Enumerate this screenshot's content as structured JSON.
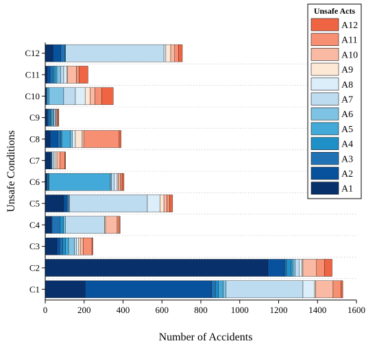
{
  "chart_data": {
    "type": "bar",
    "orientation": "horizontal",
    "stacked": true,
    "xlabel": "Number of Accidents",
    "ylabel": "Unsafe Conditions",
    "xlim": [
      0,
      1600
    ],
    "xticks": [
      0,
      200,
      400,
      600,
      800,
      1000,
      1200,
      1400,
      1600
    ],
    "grid": "horizontal dotted",
    "legend_title": "Unsafe Acts",
    "legend_placement": "top-right",
    "categories": [
      "C1",
      "C2",
      "C3",
      "C4",
      "C5",
      "C6",
      "C7",
      "C8",
      "C9",
      "C10",
      "C11",
      "C12"
    ],
    "series": [
      {
        "name": "A1",
        "color": "#08306b",
        "values": [
          205,
          1145,
          60,
          30,
          95,
          5,
          25,
          25,
          10,
          5,
          10,
          40
        ]
      },
      {
        "name": "A2",
        "color": "#08519c",
        "values": [
          650,
          85,
          15,
          5,
          15,
          5,
          5,
          40,
          5,
          0,
          15,
          40
        ]
      },
      {
        "name": "A3",
        "color": "#2171b5",
        "values": [
          20,
          10,
          15,
          40,
          10,
          5,
          5,
          15,
          10,
          5,
          15,
          20
        ]
      },
      {
        "name": "A4",
        "color": "#1f8fc8",
        "values": [
          15,
          25,
          15,
          20,
          0,
          5,
          0,
          5,
          5,
          0,
          10,
          5
        ]
      },
      {
        "name": "A5",
        "color": "#42a9d8",
        "values": [
          25,
          10,
          15,
          0,
          0,
          315,
          0,
          45,
          10,
          10,
          10,
          0
        ]
      },
      {
        "name": "A6",
        "color": "#7fc3e4",
        "values": [
          15,
          10,
          30,
          10,
          5,
          5,
          0,
          10,
          5,
          75,
          20,
          0
        ]
      },
      {
        "name": "A7",
        "color": "#bedcf0",
        "values": [
          395,
          20,
          10,
          200,
          400,
          15,
          10,
          0,
          5,
          60,
          15,
          505
        ]
      },
      {
        "name": "A8",
        "color": "#dceefa",
        "values": [
          60,
          15,
          10,
          0,
          65,
          15,
          5,
          15,
          5,
          50,
          15,
          10
        ]
      },
      {
        "name": "A9",
        "color": "#fde8d6",
        "values": [
          5,
          5,
          10,
          5,
          20,
          5,
          10,
          35,
          0,
          25,
          5,
          25
        ]
      },
      {
        "name": "A10",
        "color": "#f9b9a3",
        "values": [
          90,
          70,
          15,
          60,
          15,
          10,
          15,
          10,
          5,
          25,
          45,
          20
        ]
      },
      {
        "name": "A11",
        "color": "#f79072",
        "values": [
          40,
          40,
          45,
          10,
          15,
          10,
          25,
          180,
          5,
          35,
          15,
          20
        ]
      },
      {
        "name": "A12",
        "color": "#ef6543",
        "values": [
          10,
          40,
          5,
          5,
          15,
          10,
          5,
          10,
          5,
          60,
          45,
          20
        ]
      }
    ]
  }
}
